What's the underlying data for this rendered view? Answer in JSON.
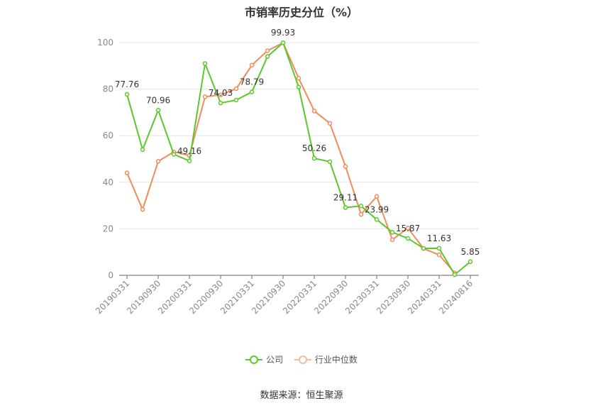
{
  "title": "市销率历史分位（%）",
  "source": "数据来源：恒生聚源",
  "legend": [
    {
      "name": "公司",
      "color": "#5cc72c"
    },
    {
      "name": "行业中位数",
      "color": "#f08c5a"
    }
  ],
  "chart_data": {
    "type": "line",
    "ylim": [
      0,
      100
    ],
    "yticks": [
      0,
      20,
      40,
      60,
      80,
      100
    ],
    "x": [
      "20190331",
      "20190630",
      "20190930",
      "20191231",
      "20200331",
      "20200630",
      "20200930",
      "20201231",
      "20210331",
      "20210630",
      "20210930",
      "20211231",
      "20220331",
      "20220630",
      "20220930",
      "20221231",
      "20230331",
      "20230630",
      "20230930",
      "20231231",
      "20240331",
      "20240630",
      "20240816"
    ],
    "xtick_labels": [
      "20190331",
      "20190930",
      "20200331",
      "20200930",
      "20210331",
      "20210930",
      "20220331",
      "20220930",
      "20230331",
      "20230930",
      "20240331",
      "20240816"
    ],
    "grid": true,
    "legend_position": "bottom",
    "series": [
      {
        "name": "公司",
        "color": "#5cc72c",
        "values": [
          77.76,
          54,
          70.96,
          52,
          49.16,
          91,
          74.03,
          75.3,
          78.79,
          94,
          99.93,
          80.9,
          50.26,
          48.8,
          29.11,
          29.8,
          23.99,
          18.5,
          15.87,
          11.6,
          11.63,
          0.3,
          5.85
        ],
        "data_labels": {
          "0": "77.76",
          "2": "70.96",
          "4": "49.16",
          "6": "74.03",
          "8": "78.79",
          "10": "99.93",
          "12": "50.26",
          "14": "29.11",
          "16": "23.99",
          "18": "15.87",
          "20": "11.63",
          "22": "5.85"
        }
      },
      {
        "name": "行业中位数",
        "color": "#f08c5a",
        "values": [
          44,
          28.3,
          49,
          53,
          51.5,
          76.7,
          77.5,
          80.2,
          90.3,
          96.5,
          99.9,
          84.7,
          70.6,
          65.3,
          46.8,
          26.2,
          33.9,
          15.3,
          20.3,
          11.5,
          8.8,
          1.0,
          null
        ]
      }
    ]
  }
}
